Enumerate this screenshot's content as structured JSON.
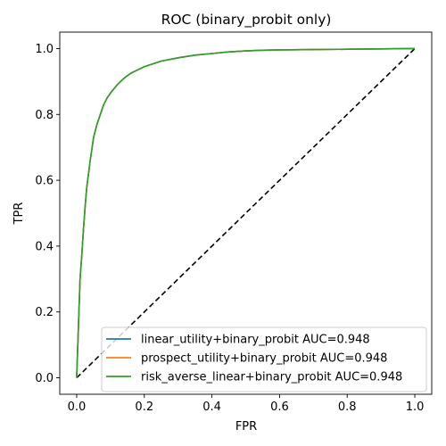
{
  "chart_data": {
    "type": "line",
    "title": "ROC (binary_probit only)",
    "xlabel": "FPR",
    "ylabel": "TPR",
    "xlim": [
      -0.05,
      1.05
    ],
    "ylim": [
      -0.05,
      1.05
    ],
    "xticks": [
      "0.0",
      "0.2",
      "0.4",
      "0.6",
      "0.8",
      "1.0"
    ],
    "yticks": [
      "0.0",
      "0.2",
      "0.4",
      "0.6",
      "0.8",
      "1.0"
    ],
    "grid": false,
    "legend_position": "lower-right",
    "series": [
      {
        "name": "linear_utility+binary_probit AUC=0.948",
        "color": "#1f77b4",
        "x": [
          0.0,
          0.005,
          0.01,
          0.015,
          0.02,
          0.025,
          0.03,
          0.04,
          0.05,
          0.06,
          0.07,
          0.08,
          0.09,
          0.1,
          0.12,
          0.14,
          0.16,
          0.18,
          0.2,
          0.25,
          0.3,
          0.35,
          0.4,
          0.45,
          0.5,
          0.55,
          0.6,
          0.7,
          0.8,
          0.9,
          1.0
        ],
        "y": [
          0.0,
          0.15,
          0.3,
          0.37,
          0.45,
          0.52,
          0.58,
          0.66,
          0.73,
          0.77,
          0.8,
          0.83,
          0.85,
          0.865,
          0.89,
          0.91,
          0.925,
          0.935,
          0.945,
          0.962,
          0.972,
          0.98,
          0.985,
          0.99,
          0.993,
          0.995,
          0.996,
          0.997,
          0.998,
          0.999,
          1.0
        ]
      },
      {
        "name": "prospect_utility+binary_probit AUC=0.948",
        "color": "#ff7f0e",
        "x": [
          0.0,
          0.005,
          0.01,
          0.015,
          0.02,
          0.025,
          0.03,
          0.04,
          0.05,
          0.06,
          0.07,
          0.08,
          0.09,
          0.1,
          0.12,
          0.14,
          0.16,
          0.18,
          0.2,
          0.25,
          0.3,
          0.35,
          0.4,
          0.45,
          0.5,
          0.55,
          0.6,
          0.7,
          0.8,
          0.9,
          1.0
        ],
        "y": [
          0.0,
          0.15,
          0.3,
          0.37,
          0.45,
          0.52,
          0.58,
          0.66,
          0.73,
          0.77,
          0.8,
          0.83,
          0.85,
          0.865,
          0.89,
          0.91,
          0.925,
          0.935,
          0.945,
          0.962,
          0.972,
          0.98,
          0.985,
          0.99,
          0.993,
          0.995,
          0.996,
          0.997,
          0.998,
          0.999,
          1.0
        ]
      },
      {
        "name": "risk_averse_linear+binary_probit AUC=0.948",
        "color": "#2ca02c",
        "x": [
          0.0,
          0.005,
          0.01,
          0.015,
          0.02,
          0.025,
          0.03,
          0.04,
          0.05,
          0.06,
          0.07,
          0.08,
          0.09,
          0.1,
          0.12,
          0.14,
          0.16,
          0.18,
          0.2,
          0.25,
          0.3,
          0.35,
          0.4,
          0.45,
          0.5,
          0.55,
          0.6,
          0.7,
          0.8,
          0.9,
          1.0
        ],
        "y": [
          0.0,
          0.15,
          0.3,
          0.37,
          0.45,
          0.52,
          0.58,
          0.66,
          0.73,
          0.77,
          0.8,
          0.83,
          0.85,
          0.865,
          0.89,
          0.91,
          0.925,
          0.935,
          0.945,
          0.962,
          0.972,
          0.98,
          0.985,
          0.99,
          0.993,
          0.995,
          0.996,
          0.997,
          0.998,
          0.999,
          1.0
        ]
      }
    ],
    "reference_line": {
      "x": [
        0,
        1
      ],
      "y": [
        0,
        1
      ],
      "color": "#000000",
      "style": "dashed"
    }
  }
}
